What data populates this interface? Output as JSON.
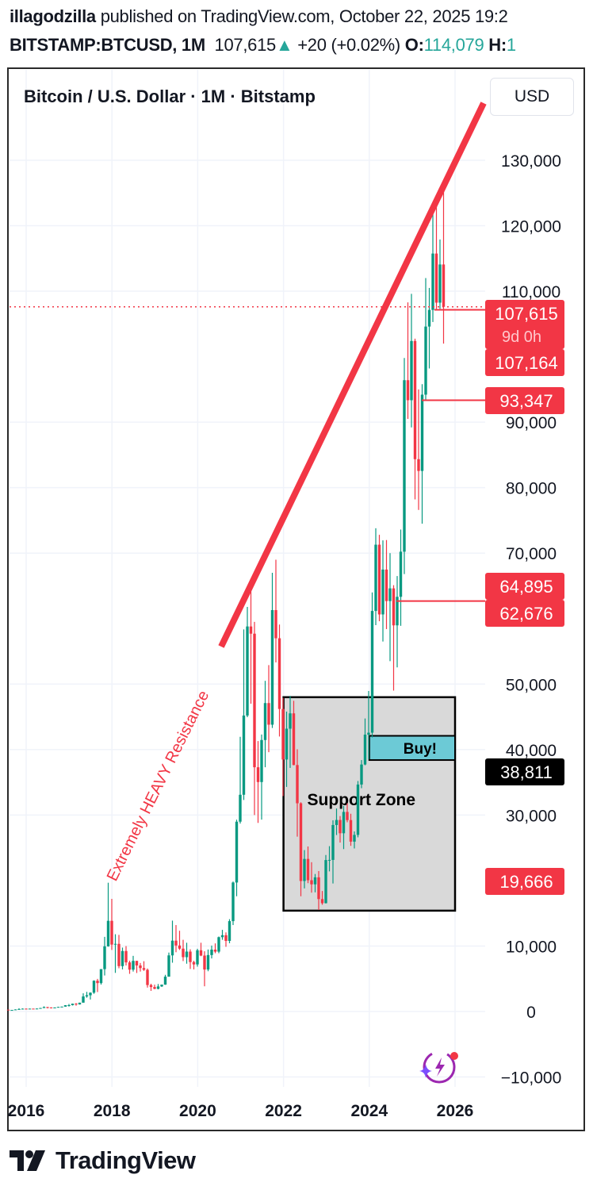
{
  "header": {
    "author": "illagodzilla",
    "published_text": "published on TradingView.com, October 22, 2025 19:2",
    "symbol": "BITSTAMP:BTCUSD, 1M",
    "last": "107,615",
    "change": "+20 (+0.02%)",
    "open_label": "O:",
    "open_value": "114,079",
    "high_label": "H:",
    "high_value": "1"
  },
  "chart_title": "Bitcoin / U.S. Dollar · 1M · Bitstamp",
  "currency_button": "USD",
  "logo_text": "TradingView",
  "colors": {
    "up": "#089981",
    "down": "#f23645",
    "annotation": "#f23645",
    "buy_box": "#6ccad6",
    "support_box": "#d9d9d9"
  },
  "chart_data": {
    "type": "candlestick",
    "interval": "1M",
    "y_ticks": [
      "130,000",
      "120,000",
      "110,000",
      "90,000",
      "80,000",
      "70,000",
      "50,000",
      "40,000",
      "30,000",
      "10,000",
      "0",
      "−10,000"
    ],
    "y_tick_values": [
      130000,
      120000,
      110000,
      90000,
      80000,
      70000,
      50000,
      40000,
      30000,
      10000,
      0,
      -10000
    ],
    "x_ticks": [
      "2016",
      "2018",
      "2020",
      "2022",
      "2024",
      "2026"
    ],
    "ylim": [
      -12000,
      143000
    ],
    "grid": true,
    "candles": [
      [
        "2015-08",
        280,
        285,
        198,
        230
      ],
      [
        "2015-09",
        230,
        245,
        225,
        236
      ],
      [
        "2015-10",
        236,
        330,
        236,
        314
      ],
      [
        "2015-11",
        314,
        500,
        300,
        377
      ],
      [
        "2015-12",
        377,
        470,
        350,
        430
      ],
      [
        "2016-01",
        430,
        465,
        350,
        368
      ],
      [
        "2016-02",
        368,
        445,
        365,
        437
      ],
      [
        "2016-03",
        437,
        440,
        395,
        416
      ],
      [
        "2016-04",
        416,
        470,
        415,
        448
      ],
      [
        "2016-05",
        448,
        550,
        435,
        531
      ],
      [
        "2016-06",
        531,
        780,
        530,
        673
      ],
      [
        "2016-07",
        673,
        700,
        470,
        624
      ],
      [
        "2016-08",
        624,
        630,
        470,
        575
      ],
      [
        "2016-09",
        575,
        630,
        570,
        609
      ],
      [
        "2016-10",
        609,
        715,
        605,
        700
      ],
      [
        "2016-11",
        700,
        755,
        690,
        742
      ],
      [
        "2016-12",
        742,
        975,
        740,
        963
      ],
      [
        "2017-01",
        963,
        1150,
        750,
        970
      ],
      [
        "2017-02",
        970,
        1210,
        915,
        1190
      ],
      [
        "2017-03",
        1190,
        1290,
        890,
        1080
      ],
      [
        "2017-04",
        1080,
        1350,
        1065,
        1348
      ],
      [
        "2017-05",
        1348,
        2780,
        1348,
        2300
      ],
      [
        "2017-06",
        2300,
        3000,
        2100,
        2480
      ],
      [
        "2017-07",
        2480,
        2920,
        1830,
        2875
      ],
      [
        "2017-08",
        2875,
        4760,
        2700,
        4700
      ],
      [
        "2017-09",
        4700,
        4980,
        2970,
        4340
      ],
      [
        "2017-10",
        4340,
        6470,
        4110,
        6470
      ],
      [
        "2017-11",
        6470,
        11400,
        5500,
        9950
      ],
      [
        "2017-12",
        9950,
        19666,
        9900,
        13850
      ],
      [
        "2018-01",
        13850,
        17200,
        9400,
        10220
      ],
      [
        "2018-02",
        10220,
        11800,
        5900,
        10330
      ],
      [
        "2018-03",
        10330,
        11700,
        6600,
        6930
      ],
      [
        "2018-04",
        6930,
        9760,
        6430,
        9240
      ],
      [
        "2018-05",
        9240,
        9990,
        7030,
        7500
      ],
      [
        "2018-06",
        7500,
        7760,
        5750,
        6390
      ],
      [
        "2018-07",
        6390,
        8500,
        6100,
        7730
      ],
      [
        "2018-08",
        7730,
        7740,
        5880,
        7030
      ],
      [
        "2018-09",
        7030,
        7410,
        6100,
        6630
      ],
      [
        "2018-10",
        6630,
        7680,
        6200,
        6370
      ],
      [
        "2018-11",
        6370,
        6570,
        3650,
        4040
      ],
      [
        "2018-12",
        4040,
        4240,
        3150,
        3740
      ],
      [
        "2019-01",
        3740,
        4100,
        3400,
        3460
      ],
      [
        "2019-02",
        3460,
        4200,
        3380,
        3830
      ],
      [
        "2019-03",
        3830,
        4100,
        3750,
        4100
      ],
      [
        "2019-04",
        4100,
        5600,
        4080,
        5320
      ],
      [
        "2019-05",
        5320,
        9000,
        5320,
        8570
      ],
      [
        "2019-06",
        8570,
        13880,
        7450,
        10820
      ],
      [
        "2019-07",
        10820,
        13200,
        9050,
        10080
      ],
      [
        "2019-08",
        10080,
        12330,
        9400,
        9600
      ],
      [
        "2019-09",
        9600,
        10950,
        7700,
        8300
      ],
      [
        "2019-10",
        8300,
        10500,
        7300,
        9150
      ],
      [
        "2019-11",
        9150,
        9500,
        6500,
        7550
      ],
      [
        "2019-12",
        7550,
        7750,
        6430,
        7190
      ],
      [
        "2020-01",
        7190,
        9580,
        6850,
        9350
      ],
      [
        "2020-02",
        9350,
        10500,
        8450,
        8540
      ],
      [
        "2020-03",
        8540,
        9200,
        3850,
        6410
      ],
      [
        "2020-04",
        6410,
        9470,
        6150,
        8620
      ],
      [
        "2020-05",
        8620,
        10070,
        8100,
        9450
      ],
      [
        "2020-06",
        9450,
        10400,
        8900,
        9140
      ],
      [
        "2020-07",
        9140,
        11450,
        8900,
        11350
      ],
      [
        "2020-08",
        11350,
        12470,
        10950,
        11650
      ],
      [
        "2020-09",
        11650,
        12080,
        9880,
        10780
      ],
      [
        "2020-10",
        10780,
        14100,
        10420,
        13800
      ],
      [
        "2020-11",
        13800,
        19850,
        13200,
        19700
      ],
      [
        "2020-12",
        19700,
        29300,
        17600,
        28990
      ],
      [
        "2021-01",
        28990,
        41950,
        28700,
        33100
      ],
      [
        "2021-02",
        33100,
        58350,
        32300,
        45200
      ],
      [
        "2021-03",
        45200,
        61790,
        44950,
        58800
      ],
      [
        "2021-04",
        58800,
        64900,
        47000,
        57700
      ],
      [
        "2021-05",
        57700,
        59500,
        30000,
        37300
      ],
      [
        "2021-06",
        37300,
        41300,
        28800,
        35040
      ],
      [
        "2021-07",
        35040,
        42300,
        29300,
        41460
      ],
      [
        "2021-08",
        41460,
        50500,
        37300,
        47100
      ],
      [
        "2021-09",
        47100,
        52900,
        39600,
        43800
      ],
      [
        "2021-10",
        43800,
        67000,
        43300,
        61300
      ],
      [
        "2021-11",
        61300,
        69000,
        53300,
        57000
      ],
      [
        "2021-12",
        57000,
        59100,
        42000,
        46200
      ],
      [
        "2022-01",
        46200,
        47900,
        32900,
        38480
      ],
      [
        "2022-02",
        38480,
        45800,
        34300,
        43190
      ],
      [
        "2022-03",
        43190,
        48200,
        37200,
        45530
      ],
      [
        "2022-04",
        45530,
        47450,
        37600,
        37640
      ],
      [
        "2022-05",
        37640,
        40050,
        26700,
        31800
      ],
      [
        "2022-06",
        31800,
        31950,
        17600,
        19930
      ],
      [
        "2022-07",
        19930,
        24650,
        18800,
        23300
      ],
      [
        "2022-08",
        23300,
        25200,
        19600,
        20050
      ],
      [
        "2022-09",
        20050,
        22800,
        18150,
        19420
      ],
      [
        "2022-10",
        19420,
        21000,
        18200,
        20490
      ],
      [
        "2022-11",
        20490,
        21450,
        15500,
        17170
      ],
      [
        "2022-12",
        17170,
        18400,
        16300,
        16540
      ],
      [
        "2023-01",
        16540,
        23900,
        16500,
        23130
      ],
      [
        "2023-02",
        23130,
        25250,
        21400,
        23150
      ],
      [
        "2023-03",
        23150,
        29200,
        19550,
        28480
      ],
      [
        "2023-04",
        28480,
        31000,
        26950,
        29250
      ],
      [
        "2023-05",
        29250,
        29850,
        25800,
        27220
      ],
      [
        "2023-06",
        27220,
        31400,
        24800,
        30480
      ],
      [
        "2023-07",
        30480,
        31800,
        28900,
        29230
      ],
      [
        "2023-08",
        29230,
        30200,
        25300,
        25940
      ],
      [
        "2023-09",
        25940,
        27500,
        24900,
        26970
      ],
      [
        "2023-10",
        26970,
        35200,
        26600,
        34660
      ],
      [
        "2023-11",
        34660,
        38400,
        34100,
        37720
      ],
      [
        "2023-12",
        37720,
        44750,
        37600,
        42280
      ],
      [
        "2024-01",
        42280,
        48950,
        38500,
        42580
      ],
      [
        "2024-02",
        42580,
        64000,
        41850,
        61170
      ],
      [
        "2024-03",
        61170,
        73800,
        59000,
        71290
      ],
      [
        "2024-04",
        71290,
        72800,
        59600,
        60640
      ],
      [
        "2024-05",
        60640,
        71950,
        56500,
        67490
      ],
      [
        "2024-06",
        67490,
        72000,
        58400,
        62680
      ],
      [
        "2024-07",
        62680,
        70000,
        53500,
        64620
      ],
      [
        "2024-08",
        64620,
        65100,
        49000,
        58970
      ],
      [
        "2024-09",
        58970,
        66500,
        52550,
        63330
      ],
      [
        "2024-10",
        63330,
        73600,
        58900,
        70220
      ],
      [
        "2024-11",
        70220,
        99800,
        66800,
        96410
      ],
      [
        "2024-12",
        96410,
        108300,
        90500,
        93350
      ],
      [
        "2025-01",
        93350,
        109600,
        89200,
        102400
      ],
      [
        "2025-02",
        102400,
        102750,
        78200,
        84350
      ],
      [
        "2025-03",
        84350,
        95000,
        76600,
        82550
      ],
      [
        "2025-04",
        82550,
        95800,
        74500,
        94200
      ],
      [
        "2025-05",
        94200,
        112000,
        93400,
        104600
      ],
      [
        "2025-06",
        104600,
        110500,
        98200,
        107140
      ],
      [
        "2025-07",
        107140,
        123200,
        105300,
        115750
      ],
      [
        "2025-08",
        115750,
        124450,
        107300,
        108250
      ],
      [
        "2025-09",
        108250,
        117900,
        107300,
        114079
      ],
      [
        "2025-10",
        114079,
        126200,
        102000,
        107615
      ]
    ],
    "price_labels": [
      {
        "value": 107615,
        "text": "107,615",
        "sub": "9d 0h",
        "style": "last"
      },
      {
        "value": 107164,
        "text": "107,164",
        "style": "red"
      },
      {
        "value": 93347,
        "text": "93,347",
        "style": "red"
      },
      {
        "value": 64895,
        "text": "64,895",
        "style": "red"
      },
      {
        "value": 62676,
        "text": "62,676",
        "style": "red"
      },
      {
        "value": 38811,
        "text": "38,811",
        "style": "black"
      },
      {
        "value": 19666,
        "text": "19,666",
        "style": "red"
      }
    ],
    "annotations": {
      "resistance_text": "Extremely HEAVY Resistance",
      "support_text": "Support Zone",
      "buy_text": "Buy!"
    }
  }
}
